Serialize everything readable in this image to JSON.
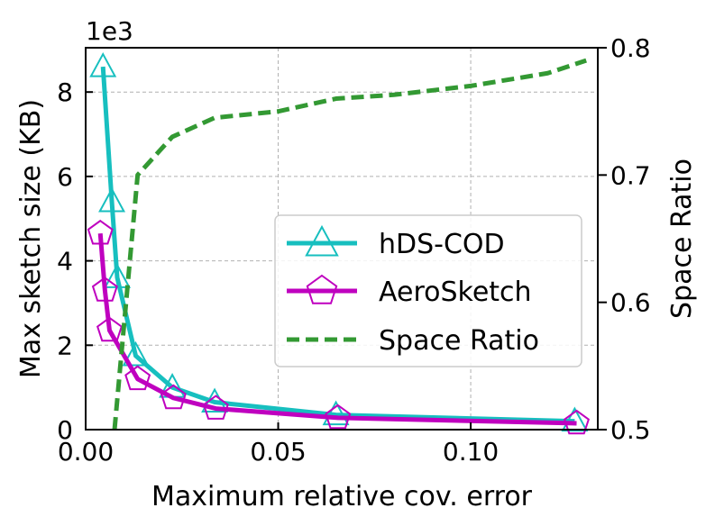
{
  "chart_data": {
    "type": "line",
    "xlabel": "Maximum relative cov. error",
    "ylabel": "Max sketch size (KB)",
    "y2label": "Space Ratio",
    "y_multiplier_label": "1e3",
    "xlim": [
      0.0,
      0.133
    ],
    "ylim": [
      0,
      9.05
    ],
    "y2lim": [
      0.5,
      0.8
    ],
    "xticks": [
      0.0,
      0.05,
      0.1
    ],
    "xtick_labels": [
      "0.00",
      "0.05",
      "0.10"
    ],
    "yticks": [
      0,
      2,
      4,
      6,
      8
    ],
    "ytick_labels": [
      "0",
      "2",
      "4",
      "6",
      "8"
    ],
    "y2ticks": [
      0.5,
      0.6,
      0.7,
      0.8
    ],
    "y2tick_labels": [
      "0.5",
      "0.6",
      "0.7",
      "0.8"
    ],
    "grid": true,
    "legend_position": "center-right",
    "series": [
      {
        "name": "hDS-COD",
        "axis": "left",
        "color": "#17BFBF",
        "marker": "triangle",
        "linestyle": "solid",
        "x": [
          0.0045,
          0.0068,
          0.0082,
          0.013,
          0.0225,
          0.0335,
          0.065,
          0.127
        ],
        "y": [
          8.6,
          5.4,
          3.6,
          1.75,
          1.0,
          0.65,
          0.35,
          0.2
        ]
      },
      {
        "name": "AeroSketch",
        "axis": "left",
        "color": "#BF00BF",
        "marker": "pentagon",
        "linestyle": "solid",
        "x": [
          0.0038,
          0.005,
          0.0062,
          0.0135,
          0.0228,
          0.0338,
          0.0655,
          0.1275
        ],
        "y": [
          4.65,
          3.3,
          2.35,
          1.2,
          0.75,
          0.5,
          0.28,
          0.15
        ]
      },
      {
        "name": "Space Ratio",
        "axis": "right",
        "color": "#339933",
        "marker": "none",
        "linestyle": "dashed",
        "x": [
          0.0075,
          0.0105,
          0.0135,
          0.0225,
          0.0335,
          0.05,
          0.065,
          0.08,
          0.1,
          0.12,
          0.13
        ],
        "y": [
          0.5,
          0.6,
          0.7,
          0.73,
          0.745,
          0.75,
          0.76,
          0.763,
          0.77,
          0.78,
          0.79
        ]
      }
    ]
  }
}
